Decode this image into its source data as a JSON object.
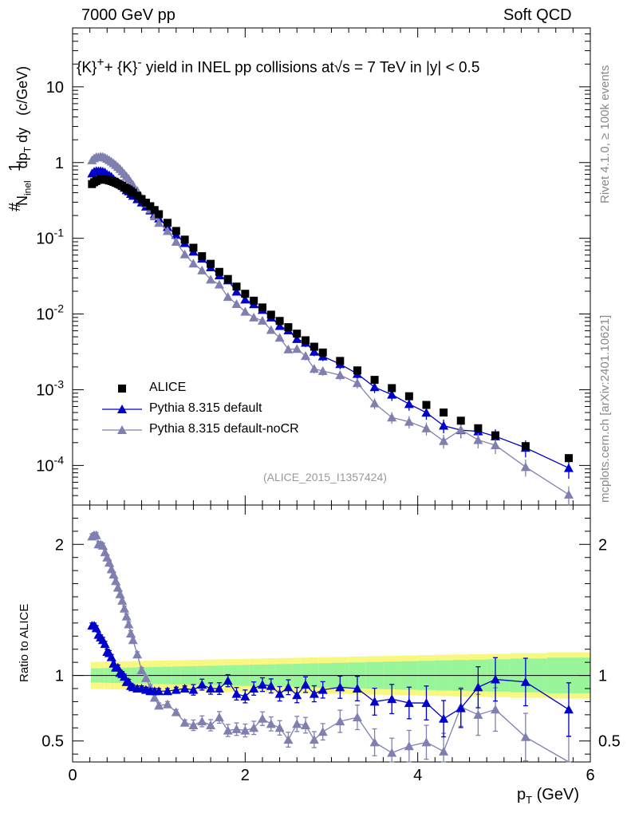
{
  "header": {
    "left": "7000 GeV pp",
    "right": "Soft QCD"
  },
  "title_html": "{K}<sup>+</sup>+ {K}<sup>-</sup> yield in INEL pp collisions at√s =  7 TeV in |y| &lt; 0.5",
  "watermark": "(ALICE_2015_I1357424)",
  "side_labels": {
    "rivet": "Rivet 4.1.0, ≥ 100k events",
    "mcplots": "mcplots.cern.ch [arXiv:2401.10621]"
  },
  "colors": {
    "data": "#000000",
    "default": "#0000cc",
    "nocr": "#8080b0",
    "band_inner": "#99f599",
    "band_outer": "#f8f880"
  },
  "chart_data": [
    {
      "type": "scatter",
      "panel": "main",
      "ylabel": "#frac{1}{N_{inel}} #frac{d^2N}{dp_T dy} (c/GeV)",
      "yscale": "log",
      "ylim": [
        3e-05,
        60
      ],
      "xlim": [
        0,
        6.0
      ],
      "y_ticks": [
        "10^{-4}",
        "10^{-3}",
        "10^{-2}",
        "10^{-1}",
        "1",
        "10"
      ],
      "legend": [
        "ALICE",
        "Pythia 8.315 default",
        "Pythia 8.315 default-noCR"
      ],
      "x": [
        0.225,
        0.25,
        0.275,
        0.3,
        0.325,
        0.35,
        0.375,
        0.4,
        0.425,
        0.45,
        0.475,
        0.5,
        0.525,
        0.55,
        0.575,
        0.6,
        0.625,
        0.65,
        0.675,
        0.7,
        0.75,
        0.8,
        0.85,
        0.9,
        0.95,
        1.0,
        1.1,
        1.2,
        1.3,
        1.4,
        1.5,
        1.6,
        1.7,
        1.8,
        1.9,
        2.0,
        2.1,
        2.2,
        2.3,
        2.4,
        2.5,
        2.6,
        2.7,
        2.8,
        2.9,
        3.1,
        3.3,
        3.5,
        3.7,
        3.9,
        4.1,
        4.3,
        4.5,
        4.7,
        4.9,
        5.25,
        5.75
      ],
      "series": [
        {
          "name": "ALICE",
          "marker": "square",
          "values": [
            0.52,
            0.55,
            0.57,
            0.59,
            0.6,
            0.6,
            0.6,
            0.59,
            0.58,
            0.57,
            0.555,
            0.54,
            0.525,
            0.51,
            0.49,
            0.47,
            0.455,
            0.44,
            0.42,
            0.4,
            0.365,
            0.33,
            0.295,
            0.265,
            0.236,
            0.208,
            0.16,
            0.125,
            0.096,
            0.075,
            0.058,
            0.046,
            0.036,
            0.029,
            0.023,
            0.0185,
            0.015,
            0.0122,
            0.0098,
            0.0081,
            0.0067,
            0.0055,
            0.0045,
            0.0037,
            0.0031,
            0.0024,
            0.0018,
            0.00135,
            0.00105,
            0.00082,
            0.00063,
            0.0005,
            0.00039,
            0.00031,
            0.00025,
            0.00018,
            0.000125
          ]
        },
        {
          "name": "Pythia 8.315 default",
          "marker": "triangle",
          "ratio": [
            1.38,
            1.38,
            1.36,
            1.31,
            1.29,
            1.27,
            1.24,
            1.18,
            1.17,
            1.14,
            1.09,
            1.06,
            1.06,
            1.02,
            1.01,
            0.99,
            0.95,
            0.95,
            0.92,
            0.91,
            0.9,
            0.9,
            0.89,
            0.88,
            0.88,
            0.88,
            0.88,
            0.89,
            0.9,
            0.89,
            0.93,
            0.9,
            0.9,
            0.96,
            0.86,
            0.84,
            0.9,
            0.93,
            0.92,
            0.86,
            0.91,
            0.85,
            0.93,
            0.86,
            0.89,
            0.91,
            0.9,
            0.8,
            0.82,
            0.79,
            0.79,
            0.67,
            0.75,
            0.91,
            0.97,
            0.95,
            0.74
          ]
        },
        {
          "name": "Pythia 8.315 default-noCR",
          "marker": "triangle",
          "ratio": [
            2.06,
            2.07,
            2.07,
            2.0,
            2.0,
            1.99,
            1.94,
            1.9,
            1.86,
            1.81,
            1.77,
            1.72,
            1.67,
            1.62,
            1.57,
            1.51,
            1.45,
            1.39,
            1.32,
            1.27,
            1.16,
            1.04,
            0.98,
            0.91,
            0.83,
            0.77,
            0.78,
            0.72,
            0.64,
            0.62,
            0.65,
            0.62,
            0.68,
            0.58,
            0.59,
            0.58,
            0.6,
            0.67,
            0.63,
            0.6,
            0.51,
            0.63,
            0.62,
            0.51,
            0.57,
            0.65,
            0.68,
            0.49,
            0.41,
            0.46,
            0.49,
            0.42,
            0.76,
            0.7,
            0.74,
            0.53,
            0.33
          ]
        }
      ]
    },
    {
      "type": "line",
      "panel": "ratio",
      "ylabel": "Ratio to ALICE",
      "xlabel": "p_T (GeV)",
      "ylim": [
        0.34,
        2.3
      ],
      "xlim": [
        0,
        6.0
      ],
      "y_ticks": [
        "0.5",
        "1",
        "2"
      ],
      "x_ticks": [
        "0",
        "2",
        "4",
        "6"
      ],
      "reference_line": 1
    }
  ]
}
